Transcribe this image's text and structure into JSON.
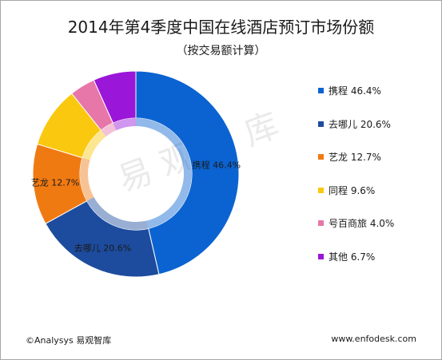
{
  "title": "2014年第4季度中国在线酒店预订市场份额",
  "subtitle": "（按交易额计算）",
  "footer": {
    "source": "©Analysys 易观智库",
    "site": "www.enfodesk.com"
  },
  "watermark": "易观智库",
  "chart_data": {
    "type": "pie",
    "donut": true,
    "title": "2014年第4季度中国在线酒店预订市场份额",
    "subtitle": "（按交易额计算）",
    "legend_position": "right",
    "categories": [
      "携程",
      "去哪儿",
      "艺龙",
      "同程",
      "号百商旅",
      "其他"
    ],
    "values": [
      46.4,
      20.6,
      12.7,
      9.6,
      4.0,
      6.7
    ],
    "unit": "%",
    "colors": [
      "#0b63d1",
      "#1d4c9e",
      "#f07a12",
      "#fac80e",
      "#e777a8",
      "#9a16d8"
    ],
    "legend": [
      "携程 46.4%",
      "去哪儿 20.6%",
      "艺龙 12.7%",
      "同程 9.6%",
      "号百商旅 4.0%",
      "其他 6.7%"
    ],
    "data_labels": [
      "携程 46.4%",
      "去哪儿 20.6%",
      "艺龙 12.7%",
      "",
      "",
      ""
    ]
  }
}
